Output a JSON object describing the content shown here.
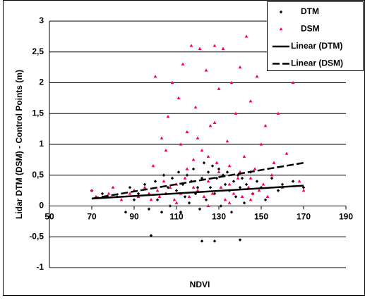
{
  "chart_data": {
    "type": "scatter",
    "x_label": "NDVI",
    "y_label": "Lidar DTM (DSM) - Control Points (m)",
    "xlim": [
      50,
      190
    ],
    "xticks": [
      50,
      70,
      90,
      110,
      130,
      150,
      170,
      190
    ],
    "ylim": [
      -1,
      3
    ],
    "yticks": [
      -1,
      {
        "value": -0.5,
        "label": "-0,5"
      },
      0,
      {
        "value": 0.5,
        "label": "0,5"
      },
      1,
      {
        "value": 1.5,
        "label": "1,5"
      },
      2,
      {
        "value": 2.5,
        "label": "2,5"
      },
      3
    ],
    "grid": true,
    "legend": "top-right",
    "series": [
      {
        "name": "DTM",
        "color": "#000000",
        "marker": "diamond",
        "x": [
          70,
          75,
          82,
          86,
          88,
          90,
          92,
          95,
          97,
          98,
          100,
          101,
          103,
          104,
          105,
          106,
          107,
          108,
          110,
          111,
          112,
          113,
          114,
          115,
          116,
          117,
          118,
          119,
          120,
          121,
          122,
          122,
          123,
          124,
          125,
          126,
          127,
          128,
          128,
          129,
          130,
          131,
          132,
          133,
          134,
          135,
          136,
          137,
          138,
          139,
          140,
          140,
          141,
          142,
          143,
          145,
          146,
          148,
          150,
          152,
          155,
          158,
          160,
          165,
          170
        ],
        "values": [
          0.25,
          0.2,
          0.15,
          -0.1,
          0.3,
          0.1,
          0.2,
          0.35,
          -0.05,
          -0.48,
          0.4,
          0.1,
          -0.1,
          0.5,
          0.2,
          0.3,
          0.0,
          0.45,
          0.25,
          0.55,
          -0.1,
          0.35,
          0.15,
          0.5,
          0.05,
          0.4,
          0.6,
          0.2,
          0.3,
          -0.05,
          -0.57,
          0.45,
          0.7,
          0.1,
          0.55,
          0.3,
          0.65,
          -0.57,
          0.2,
          0.45,
          0.6,
          0.0,
          0.5,
          0.35,
          0.55,
          0.25,
          -0.1,
          0.4,
          0.15,
          0.5,
          -0.55,
          0.3,
          0.45,
          0.05,
          0.35,
          0.55,
          0.2,
          0.4,
          0.3,
          0.1,
          0.45,
          0.25,
          0.35,
          0.4,
          0.3
        ]
      },
      {
        "name": "DSM",
        "color": "#ff0040",
        "marker": "triangle",
        "x": [
          70,
          72,
          78,
          80,
          84,
          88,
          90,
          92,
          95,
          97,
          98,
          99,
          100,
          101,
          102,
          103,
          104,
          105,
          106,
          107,
          108,
          109,
          110,
          111,
          112,
          113,
          114,
          115,
          116,
          117,
          118,
          119,
          120,
          121,
          122,
          123,
          124,
          125,
          126,
          127,
          128,
          129,
          130,
          131,
          132,
          133,
          134,
          135,
          136,
          137,
          138,
          139,
          140,
          141,
          142,
          143,
          144,
          145,
          146,
          147,
          148,
          149,
          150,
          151,
          152,
          153,
          155,
          156,
          158,
          160,
          162,
          165,
          168,
          170,
          105,
          112,
          118,
          125,
          130,
          135,
          140,
          145,
          120,
          128,
          115,
          110,
          125,
          135,
          145
        ],
        "values": [
          0.25,
          0.15,
          0.2,
          0.3,
          0.1,
          0.2,
          0.25,
          0.15,
          0.3,
          0.2,
          0.1,
          0.65,
          2.1,
          0.25,
          0.15,
          1.1,
          0.4,
          0.2,
          1.45,
          0.3,
          2.0,
          0.1,
          0.35,
          1.75,
          0.2,
          2.3,
          0.45,
          1.2,
          0.15,
          2.6,
          0.3,
          1.6,
          0.25,
          2.55,
          0.9,
          0.15,
          2.2,
          0.4,
          1.3,
          0.2,
          2.6,
          0.7,
          1.9,
          0.3,
          2.55,
          0.1,
          1.05,
          0.35,
          2.0,
          0.2,
          1.5,
          0.45,
          2.25,
          0.15,
          0.8,
          2.75,
          0.3,
          1.7,
          0.2,
          0.6,
          2.1,
          0.25,
          1.0,
          0.35,
          1.3,
          0.15,
          0.5,
          0.7,
          1.5,
          0.3,
          0.85,
          2.0,
          0.4,
          0.25,
          0.9,
          1.0,
          0.75,
          0.8,
          0.55,
          0.65,
          0.55,
          0.45,
          1.1,
          1.35,
          0.6,
          0.05,
          0.0,
          0.05,
          0.1
        ]
      },
      {
        "name": "Linear (DTM)",
        "type": "line",
        "color": "#000000",
        "dash": false,
        "x": [
          70,
          170
        ],
        "values": [
          0.12,
          0.33
        ]
      },
      {
        "name": "Linear (DSM)",
        "type": "line",
        "color": "#000000",
        "dash": true,
        "x": [
          70,
          170
        ],
        "values": [
          0.12,
          0.7
        ]
      }
    ]
  }
}
